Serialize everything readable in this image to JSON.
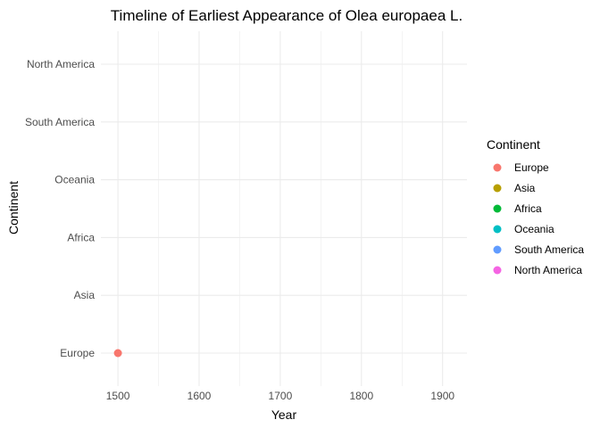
{
  "chart_data": {
    "type": "scatter",
    "title": "Timeline of Earliest Appearance of Olea europaea L.",
    "xlabel": "Year",
    "ylabel": "Continent",
    "x_ticks": [
      1500,
      1600,
      1700,
      1800,
      1900
    ],
    "xlim": [
      1479,
      1930
    ],
    "categories": [
      "Europe",
      "Asia",
      "Africa",
      "Oceania",
      "South America",
      "North America"
    ],
    "points": [
      {
        "continent": "Europe",
        "year": 1500
      }
    ],
    "legend": {
      "title": "Continent",
      "placement": "right",
      "entries": [
        {
          "label": "Europe",
          "color": "#F8766D"
        },
        {
          "label": "Asia",
          "color": "#B79F00"
        },
        {
          "label": "Africa",
          "color": "#00BA38"
        },
        {
          "label": "Oceania",
          "color": "#00BFC4"
        },
        {
          "label": "South America",
          "color": "#619CFF"
        },
        {
          "label": "North America",
          "color": "#F564E3"
        }
      ]
    },
    "grid": true
  }
}
